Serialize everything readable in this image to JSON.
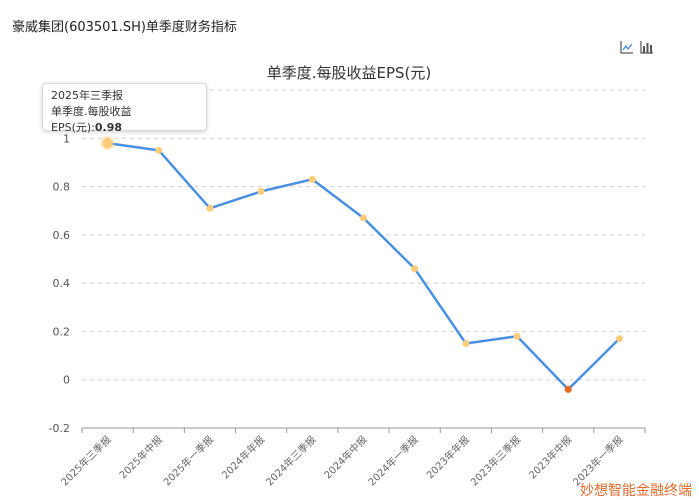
{
  "page": {
    "title": "豪威集团(603501.SH)单季度财务指标"
  },
  "toolbar": {
    "icons": [
      "line-chart-icon",
      "bar-chart-icon"
    ]
  },
  "tooltip": {
    "period": "2025年三季报",
    "label": "单季度.每股收益EPS(元):",
    "value": "0.98"
  },
  "watermark": "妙想智能金融终端",
  "colors": {
    "line": "#4a90e2",
    "point": "#fbcb7c",
    "negative_point": "#e8681e"
  },
  "chart_data": {
    "type": "line",
    "title": "单季度.每股收益EPS(元)",
    "xlabel": "",
    "ylabel": "",
    "categories": [
      "2025年三季报",
      "2025年中报",
      "2025年一季报",
      "2024年年报",
      "2024年三季报",
      "2024年中报",
      "2024年一季报",
      "2023年年报",
      "2023年三季报",
      "2023年中报",
      "2023年一季报"
    ],
    "series": [
      {
        "values": [
          0.98,
          0.95,
          0.71,
          0.78,
          0.83,
          0.67,
          0.46,
          0.15,
          0.18,
          -0.04,
          0.17
        ]
      }
    ],
    "ylim": [
      -0.2,
      1.2
    ],
    "yticks": [
      -0.2,
      0,
      0.2,
      0.4,
      0.6,
      0.8,
      1
    ],
    "ytick_labels": [
      "-0.2",
      "0",
      "0.2",
      "0.4",
      "0.6",
      "0.8",
      "1"
    ],
    "grid": true,
    "legend": false
  }
}
